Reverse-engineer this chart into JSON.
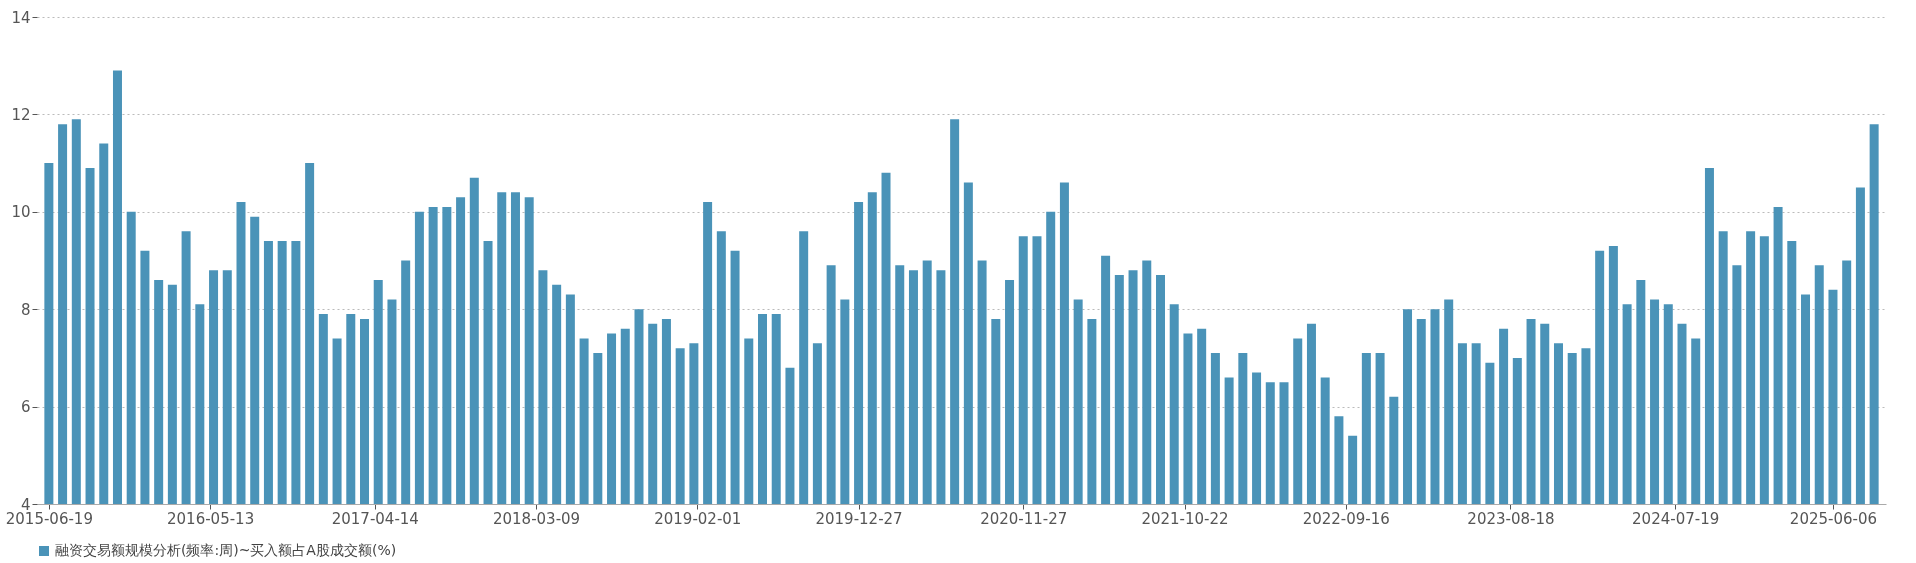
{
  "chart_data": {
    "type": "bar",
    "x": [
      "2015-06-19",
      "2015-07-17",
      "2015-08-14",
      "2015-09-11",
      "2015-10-09",
      "2015-11-06",
      "2015-12-04",
      "2016-01-01",
      "2016-01-29",
      "2016-02-26",
      "2016-03-25",
      "2016-04-22",
      "2016-05-20",
      "2016-06-17",
      "2016-07-15",
      "2016-08-12",
      "2016-09-09",
      "2016-10-07",
      "2016-11-04",
      "2016-12-02",
      "2016-12-30",
      "2017-01-27",
      "2017-02-24",
      "2017-03-24",
      "2017-04-21",
      "2017-05-19",
      "2017-06-16",
      "2017-07-14",
      "2017-08-11",
      "2017-09-08",
      "2017-10-06",
      "2017-11-03",
      "2017-12-01",
      "2017-12-29",
      "2018-01-26",
      "2018-02-23",
      "2018-03-23",
      "2018-04-20",
      "2018-05-18",
      "2018-06-15",
      "2018-07-13",
      "2018-08-10",
      "2018-09-07",
      "2018-10-05",
      "2018-11-02",
      "2018-11-30",
      "2018-12-28",
      "2019-01-25",
      "2019-02-22",
      "2019-03-22",
      "2019-04-19",
      "2019-05-17",
      "2019-06-14",
      "2019-07-12",
      "2019-08-09",
      "2019-09-06",
      "2019-10-04",
      "2019-11-01",
      "2019-11-29",
      "2019-12-27",
      "2020-01-24",
      "2020-02-21",
      "2020-03-20",
      "2020-04-17",
      "2020-05-15",
      "2020-06-12",
      "2020-07-10",
      "2020-08-07",
      "2020-09-04",
      "2020-10-02",
      "2020-10-30",
      "2020-11-27",
      "2020-12-25",
      "2021-01-22",
      "2021-02-19",
      "2021-03-19",
      "2021-04-16",
      "2021-05-14",
      "2021-06-11",
      "2021-07-09",
      "2021-08-06",
      "2021-09-03",
      "2021-10-01",
      "2021-10-29",
      "2021-11-26",
      "2021-12-24",
      "2022-01-21",
      "2022-02-18",
      "2022-03-18",
      "2022-04-15",
      "2022-05-13",
      "2022-06-10",
      "2022-07-08",
      "2022-08-05",
      "2022-09-02",
      "2022-09-30",
      "2022-10-28",
      "2022-11-25",
      "2022-12-23",
      "2023-01-20",
      "2023-02-17",
      "2023-03-17",
      "2023-04-14",
      "2023-05-12",
      "2023-06-09",
      "2023-07-07",
      "2023-08-04",
      "2023-09-01",
      "2023-09-29",
      "2023-10-27",
      "2023-11-24",
      "2023-12-22",
      "2024-01-19",
      "2024-02-16",
      "2024-03-15",
      "2024-04-12",
      "2024-05-10",
      "2024-06-07",
      "2024-07-05",
      "2024-08-02",
      "2024-08-30",
      "2024-09-27",
      "2024-10-25",
      "2024-11-22",
      "2024-12-20",
      "2025-01-17",
      "2025-02-14",
      "2025-03-14",
      "2025-04-11",
      "2025-05-09",
      "2025-06-06",
      "2025-07-04",
      "2025-08-01",
      "2025-08-29"
    ],
    "series": [
      {
        "name": "融资交易额规模分析(频率:周)~买入额占A股成交额(%)",
        "color": "#4a93b8",
        "values": [
          11.0,
          11.8,
          11.9,
          10.9,
          11.4,
          12.9,
          10.0,
          9.2,
          8.6,
          8.5,
          9.6,
          8.1,
          8.8,
          8.8,
          10.2,
          9.9,
          9.4,
          9.4,
          9.4,
          11.0,
          7.9,
          7.4,
          7.9,
          7.8,
          8.6,
          8.2,
          9.0,
          10.0,
          10.1,
          10.1,
          10.3,
          10.7,
          9.4,
          10.4,
          10.4,
          10.3,
          8.8,
          8.5,
          8.3,
          7.4,
          7.1,
          7.5,
          7.6,
          8.0,
          7.7,
          7.8,
          7.2,
          7.3,
          10.2,
          9.6,
          9.2,
          7.4,
          7.9,
          7.9,
          6.8,
          9.6,
          7.3,
          8.9,
          8.2,
          10.2,
          10.4,
          10.8,
          8.9,
          8.8,
          9.0,
          8.8,
          11.9,
          10.6,
          9.0,
          7.8,
          8.6,
          9.5,
          9.5,
          10.0,
          10.6,
          8.2,
          7.8,
          9.1,
          8.7,
          8.8,
          9.0,
          8.7,
          8.1,
          7.5,
          7.6,
          7.1,
          6.6,
          7.1,
          6.7,
          6.5,
          6.5,
          7.4,
          7.7,
          6.6,
          5.8,
          5.4,
          7.1,
          7.1,
          6.2,
          8.0,
          7.8,
          8.0,
          8.2,
          7.3,
          7.3,
          6.9,
          7.6,
          7.0,
          7.8,
          7.7,
          7.3,
          7.1,
          7.2,
          9.2,
          9.3,
          8.1,
          8.6,
          8.2,
          8.1,
          7.7,
          7.4,
          10.9,
          9.6,
          8.9,
          9.6,
          9.5,
          10.1,
          9.4,
          8.3,
          8.9,
          8.4,
          9.0,
          10.5,
          11.8
        ]
      }
    ],
    "xlim": [
      "2015-06-05",
      "2025-09-12"
    ],
    "xticks": [
      "2015-06-19",
      "2016-05-13",
      "2017-04-14",
      "2018-03-09",
      "2019-02-01",
      "2019-12-27",
      "2020-11-27",
      "2021-10-22",
      "2022-09-16",
      "2023-08-18",
      "2024-07-19",
      "2025-06-06"
    ],
    "ylim": [
      4,
      14
    ],
    "yticks": [
      4,
      6,
      8,
      10,
      12,
      14
    ],
    "grid": "y",
    "legend": "bottom"
  }
}
